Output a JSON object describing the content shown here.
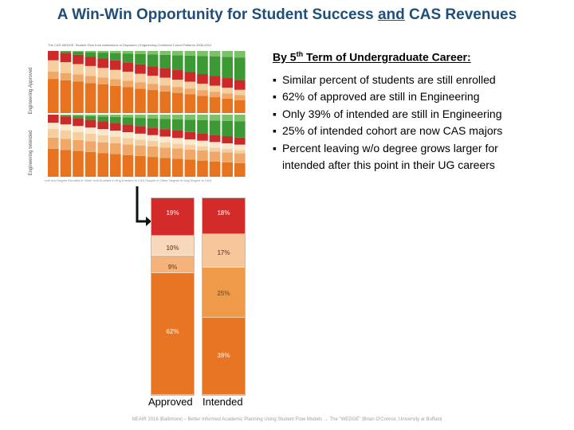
{
  "title": {
    "pre": "A Win-Win Opportunity for Student Success ",
    "and": "and",
    "post": " CAS Revenues"
  },
  "thumbnail": {
    "title": "The CAS WEDGE: Student Flow from Admissions to Departure | Engineering Combined Cohort Patterns 2006-2012",
    "row_labels": [
      "Engineering Approved",
      "Engineering Intended"
    ],
    "legend": "Left w/o Degree   Enrolled in Other Unit   Enrolled in Eng   Enrolled in CAS   Degree in Other   Degree in Eng   Degree in CAS",
    "colors": [
      "#e8731e",
      "#f0a868",
      "#f6cfa0",
      "#fbe8cc",
      "#cc2a2a",
      "#3c9a34",
      "#7dc06a"
    ]
  },
  "chart_data": {
    "type": "bar",
    "categories": [
      "Approved",
      "Intended"
    ],
    "series_colors": [
      "#e87524",
      "#ee9a4c",
      "#f6c8a0",
      "#f6dcc4",
      "#d32a2a"
    ],
    "segments": [
      [
        {
          "value": 62,
          "label": "62%",
          "color": "#e87524"
        },
        {
          "value": 9,
          "label": "9%",
          "color": "#f3b37a"
        },
        {
          "value": 10,
          "label": "10%",
          "color": "#f7d8bd"
        },
        {
          "value": 19,
          "label": "19%",
          "color": "#d32a2a"
        }
      ],
      [
        {
          "value": 39,
          "label": "39%",
          "color": "#e87524"
        },
        {
          "value": 25,
          "label": "25%",
          "color": "#ef9a48"
        },
        {
          "value": 17,
          "label": "17%",
          "color": "#f6c79b"
        },
        {
          "value": 18,
          "label": "18%",
          "color": "#d32a2a"
        }
      ]
    ]
  },
  "text": {
    "heading_pre": "By 5",
    "heading_sup": "th",
    "heading_post": " Term of Undergraduate Career:",
    "bullets": [
      "Similar percent of students are still enrolled",
      "62% of approved are still in Engineering",
      "Only 39% of intended are still in Engineering",
      "25% of intended cohort are now CAS majors",
      "Percent leaving w/o degree grows larger for"
    ],
    "continuation": "intended after this point in their UG careers"
  },
  "footer": "NEAIR 2016 |Baltimore| – Better Informed Academic Planning Using Student Flow Models → The \"WEDGE\" |Brian O'Connor, University at Buffalo|"
}
